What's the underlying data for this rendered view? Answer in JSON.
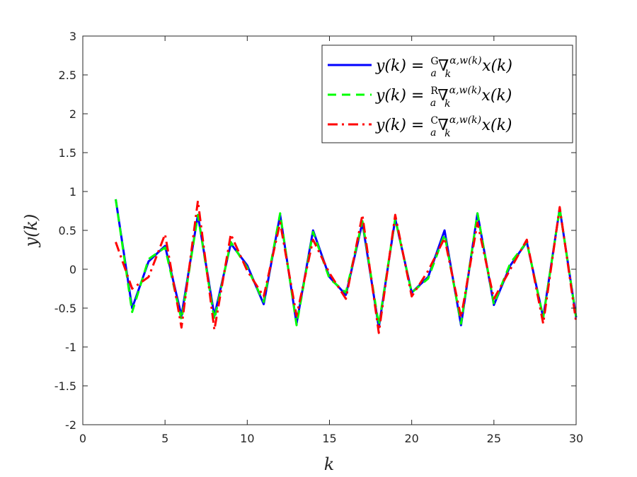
{
  "chart_data": {
    "type": "line",
    "xlabel": "k",
    "ylabel": "y(k)",
    "xlim": [
      0,
      30
    ],
    "ylim": [
      -2,
      3
    ],
    "xticks": [
      0,
      5,
      10,
      15,
      20,
      25,
      30
    ],
    "yticks": [
      -2,
      -1.5,
      -1,
      -0.5,
      0,
      0.5,
      1,
      1.5,
      2,
      2.5,
      3
    ],
    "grid": false,
    "legend_position": "top-right",
    "x": [
      2,
      3,
      4,
      5,
      6,
      7,
      8,
      9,
      10,
      11,
      12,
      13,
      14,
      15,
      16,
      17,
      18,
      19,
      20,
      21,
      22,
      23,
      24,
      25,
      26,
      27,
      28,
      29,
      30
    ],
    "series": [
      {
        "name": "y(k) = G a ∇ k α,w(k) x(k)",
        "operator_superscript": "G",
        "color": "#0000ff",
        "dash": "solid",
        "values": [
          0.9,
          -0.5,
          0.1,
          0.3,
          -0.6,
          0.7,
          -0.6,
          0.33,
          0.05,
          -0.45,
          0.7,
          -0.7,
          0.5,
          -0.1,
          -0.33,
          0.6,
          -0.75,
          0.65,
          -0.3,
          -0.1,
          0.5,
          -0.72,
          0.72,
          -0.46,
          0.05,
          0.35,
          -0.62,
          0.78,
          -0.62
        ]
      },
      {
        "name": "y(k) = R a ∇ k α,w(k) x(k)",
        "operator_superscript": "R",
        "color": "#00ff00",
        "dash": "dashed",
        "values": [
          0.9,
          -0.55,
          0.13,
          0.28,
          -0.65,
          0.7,
          -0.65,
          0.35,
          0.02,
          -0.42,
          0.72,
          -0.72,
          0.48,
          -0.12,
          -0.3,
          0.62,
          -0.72,
          0.65,
          -0.3,
          -0.12,
          0.45,
          -0.7,
          0.72,
          -0.45,
          0.08,
          0.35,
          -0.62,
          0.78,
          -0.62
        ]
      },
      {
        "name": "y(k) = C a ∇ k α,w(k) x(k)",
        "operator_superscript": "C",
        "color": "#ff0000",
        "dash": "dashdot",
        "values": [
          0.35,
          -0.25,
          -0.1,
          0.45,
          -0.75,
          0.88,
          -0.78,
          0.45,
          -0.02,
          -0.35,
          0.6,
          -0.6,
          0.38,
          -0.05,
          -0.38,
          0.7,
          -0.82,
          0.7,
          -0.35,
          -0.02,
          0.4,
          -0.62,
          0.6,
          -0.38,
          0.0,
          0.38,
          -0.7,
          0.8,
          -0.68
        ]
      }
    ],
    "legend": [
      {
        "lhs": "y(k) = ",
        "sup": "G",
        "sub": "a",
        "nabla": "∇",
        "exp": "α,w(k)",
        "low": "k",
        "rhs": "x(k)"
      },
      {
        "lhs": "y(k) = ",
        "sup": "R",
        "sub": "a",
        "nabla": "∇",
        "exp": "α,w(k)",
        "low": "k",
        "rhs": "x(k)"
      },
      {
        "lhs": "y(k) = ",
        "sup": "C",
        "sub": "a",
        "nabla": "∇",
        "exp": "α,w(k)",
        "low": "k",
        "rhs": "x(k)"
      }
    ]
  }
}
